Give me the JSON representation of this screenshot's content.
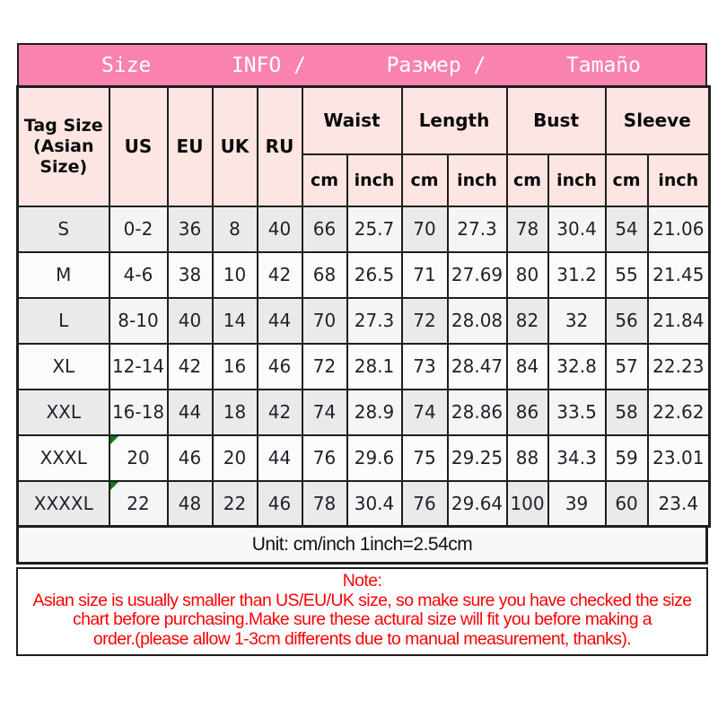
{
  "title_bar": {
    "labels": [
      "Size",
      "INFO /",
      "Размер /",
      "Tamaño"
    ]
  },
  "table": {
    "corner_header": "Tag Size\n(Asian\nSize)",
    "size_system_headers": [
      "US",
      "EU",
      "UK",
      "RU"
    ],
    "measure_headers": [
      "Waist",
      "Length",
      "Bust",
      "Sleeve"
    ],
    "unit_headers": [
      "cm",
      "inch",
      "cm",
      "inch",
      "cm",
      "inch",
      "cm",
      "inch"
    ],
    "rows": [
      [
        "S",
        "0-2",
        "36",
        "8",
        "40",
        "66",
        "25.7",
        "70",
        "27.3",
        "78",
        "30.4",
        "54",
        "21.06"
      ],
      [
        "M",
        "4-6",
        "38",
        "10",
        "42",
        "68",
        "26.5",
        "71",
        "27.69",
        "80",
        "31.2",
        "55",
        "21.45"
      ],
      [
        "L",
        "8-10",
        "40",
        "14",
        "44",
        "70",
        "27.3",
        "72",
        "28.08",
        "82",
        "32",
        "56",
        "21.84"
      ],
      [
        "XL",
        "12-14",
        "42",
        "16",
        "46",
        "72",
        "28.1",
        "73",
        "28.47",
        "84",
        "32.8",
        "57",
        "22.23"
      ],
      [
        "XXL",
        "16-18",
        "44",
        "18",
        "42",
        "74",
        "28.9",
        "74",
        "28.86",
        "86",
        "33.5",
        "58",
        "22.62"
      ],
      [
        "XXXL",
        "20",
        "46",
        "20",
        "44",
        "76",
        "29.6",
        "75",
        "29.25",
        "88",
        "34.3",
        "59",
        "23.01"
      ],
      [
        "XXXXL",
        "22",
        "48",
        "22",
        "46",
        "78",
        "30.4",
        "76",
        "29.64",
        "100",
        "39",
        "60",
        "23.4"
      ]
    ],
    "shaded_row_light_cols": [
      1,
      6,
      8,
      10,
      12
    ],
    "green_flag_cells": [
      [
        5,
        1
      ],
      [
        6,
        1
      ]
    ]
  },
  "unit_note": "Unit: cm/inch 1inch=2.54cm",
  "note": {
    "title": "Note:",
    "body": "Asian size is usually smaller than US/EU/UK size, so make sure you have checked the size\nchart before purchasing.Make sure these actural size will fit you before making a\norder.(please allow 1-3cm differents due to manual measurement, thanks)."
  },
  "colors": {
    "title_bar_pink": "#f982b1",
    "header_cell_pink": "#fce5e2",
    "shaded_row_gray": "#eaeaea",
    "note_red": "#fc0204",
    "flag_green": "#0a7a12",
    "border_black": "#1e1e1e"
  }
}
